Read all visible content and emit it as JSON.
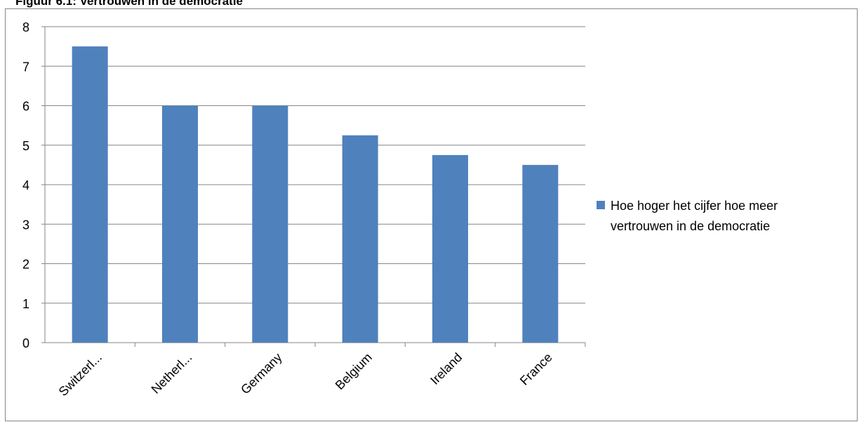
{
  "figure_title": "Figuur 6.1: Vertrouwen in de democratie",
  "chart_data": {
    "type": "bar",
    "title": "",
    "xlabel": "",
    "ylabel": "",
    "categories": [
      "Switzerl...",
      "Netherl...",
      "Germany",
      "Belgium",
      "Ireland",
      "France"
    ],
    "series": [
      {
        "name": "Hoe hoger het cijfer hoe meer vertrouwen in de democratie",
        "values": [
          7.5,
          6,
          6,
          5.25,
          4.75,
          4.5
        ]
      }
    ],
    "ylim": [
      0,
      8
    ],
    "yticks": [
      0,
      1,
      2,
      3,
      4,
      5,
      6,
      7,
      8
    ],
    "grid": true,
    "legend": "right",
    "colors": {
      "bar": "#4F81BD",
      "grid": "#868686",
      "frame": "#868686"
    }
  }
}
